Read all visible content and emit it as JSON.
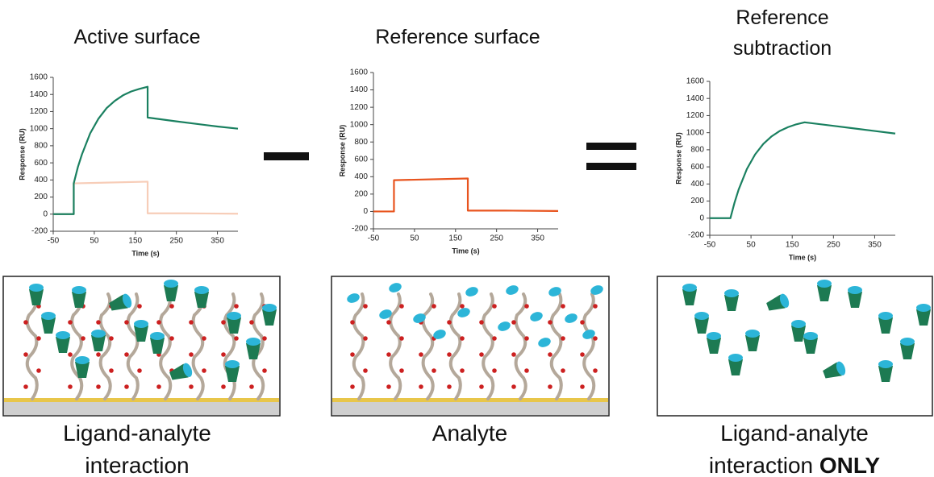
{
  "chart_data": [
    {
      "type": "line",
      "title": "Active surface",
      "caption": "Ligand-analyte interaction",
      "xlabel": "Time (s)",
      "ylabel": "Response (RU)",
      "xlim": [
        -50,
        400
      ],
      "xticks": [
        -50,
        50,
        150,
        250,
        350
      ],
      "ylim": [
        -200,
        1600
      ],
      "yticks": [
        -200,
        0,
        200,
        400,
        600,
        800,
        1000,
        1200,
        1400,
        1600
      ],
      "series": [
        {
          "color": "#f7cdb8",
          "x": [
            -50,
            0,
            0,
            180,
            180,
            270,
            400
          ],
          "values": [
            0,
            0,
            360,
            380,
            10,
            10,
            5
          ]
        },
        {
          "color": "#1a8060",
          "x": [
            -50,
            0,
            0,
            10,
            20,
            40,
            60,
            80,
            100,
            120,
            140,
            160,
            180,
            180,
            250,
            300,
            350,
            400
          ],
          "values": [
            0,
            0,
            360,
            550,
            700,
            945,
            1115,
            1240,
            1325,
            1390,
            1435,
            1465,
            1490,
            1130,
            1085,
            1055,
            1025,
            1000
          ]
        }
      ]
    },
    {
      "type": "line",
      "title": "Reference surface",
      "caption": "Analyte",
      "xlabel": "Time (s)",
      "ylabel": "Response (RU)",
      "xlim": [
        -50,
        400
      ],
      "xticks": [
        -50,
        50,
        150,
        250,
        350
      ],
      "ylim": [
        -200,
        1600
      ],
      "yticks": [
        -200,
        0,
        200,
        400,
        600,
        800,
        1000,
        1200,
        1400,
        1600
      ],
      "series": [
        {
          "color": "#e8541e",
          "x": [
            -50,
            0,
            0,
            180,
            180,
            270,
            400
          ],
          "values": [
            0,
            0,
            360,
            380,
            10,
            10,
            5
          ]
        }
      ]
    },
    {
      "type": "line",
      "title": "Reference subtraction",
      "caption": "Ligand-analyte interaction",
      "caption_emphasis": "ONLY",
      "xlabel": "Time (s)",
      "ylabel": "Response (RU)",
      "xlim": [
        -50,
        400
      ],
      "xticks": [
        -50,
        50,
        150,
        250,
        350
      ],
      "ylim": [
        -200,
        1600
      ],
      "yticks": [
        -200,
        0,
        200,
        400,
        600,
        800,
        1000,
        1200,
        1400,
        1600
      ],
      "series": [
        {
          "color": "#1a8060",
          "x": [
            -50,
            0,
            10,
            20,
            40,
            60,
            80,
            100,
            120,
            140,
            160,
            180,
            250,
            300,
            350,
            400
          ],
          "values": [
            0,
            0,
            181,
            334,
            575,
            746,
            869,
            957,
            1021,
            1065,
            1098,
            1121,
            1080,
            1050,
            1020,
            990
          ]
        }
      ]
    }
  ]
}
